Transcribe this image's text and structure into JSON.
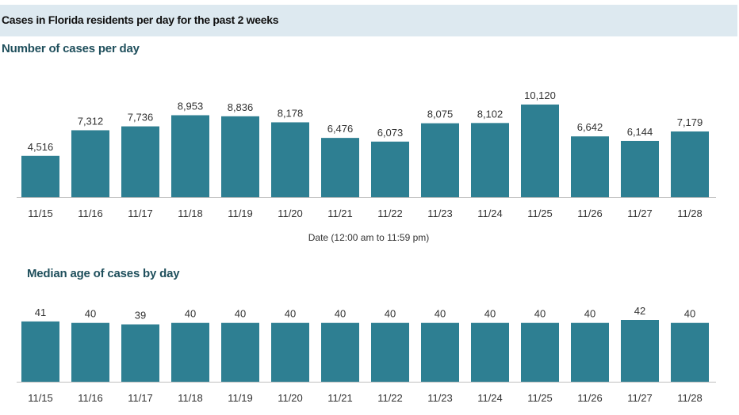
{
  "page_title": "Cases in Florida residents per day for the past 2 weeks",
  "chart_data": [
    {
      "type": "bar",
      "title": "Number of cases per day",
      "xlabel": "Date (12:00 am to 11:59 pm)",
      "ylabel": "",
      "categories": [
        "11/15",
        "11/16",
        "11/17",
        "11/18",
        "11/19",
        "11/20",
        "11/21",
        "11/22",
        "11/23",
        "11/24",
        "11/25",
        "11/26",
        "11/27",
        "11/28"
      ],
      "values": [
        4516,
        7312,
        7736,
        8953,
        8836,
        8178,
        6476,
        6073,
        8075,
        8102,
        10120,
        6642,
        6144,
        7179
      ],
      "value_labels": [
        "4,516",
        "7,312",
        "7,736",
        "8,953",
        "8,836",
        "8,178",
        "6,476",
        "6,073",
        "8,075",
        "8,102",
        "10,120",
        "6,642",
        "6,144",
        "7,179"
      ],
      "ylim": [
        0,
        10120
      ],
      "grid": false,
      "bar_color": "#2e7f92"
    },
    {
      "type": "bar",
      "title": "Median age of cases by day",
      "xlabel": "",
      "ylabel": "",
      "categories": [
        "11/15",
        "11/16",
        "11/17",
        "11/18",
        "11/19",
        "11/20",
        "11/21",
        "11/22",
        "11/23",
        "11/24",
        "11/25",
        "11/26",
        "11/27",
        "11/28"
      ],
      "values": [
        41,
        40,
        39,
        40,
        40,
        40,
        40,
        40,
        40,
        40,
        40,
        40,
        42,
        40
      ],
      "value_labels": [
        "41",
        "40",
        "39",
        "40",
        "40",
        "40",
        "40",
        "40",
        "40",
        "40",
        "40",
        "40",
        "42",
        "40"
      ],
      "ylim": [
        0,
        42
      ],
      "grid": false,
      "bar_color": "#2e7f92"
    }
  ]
}
